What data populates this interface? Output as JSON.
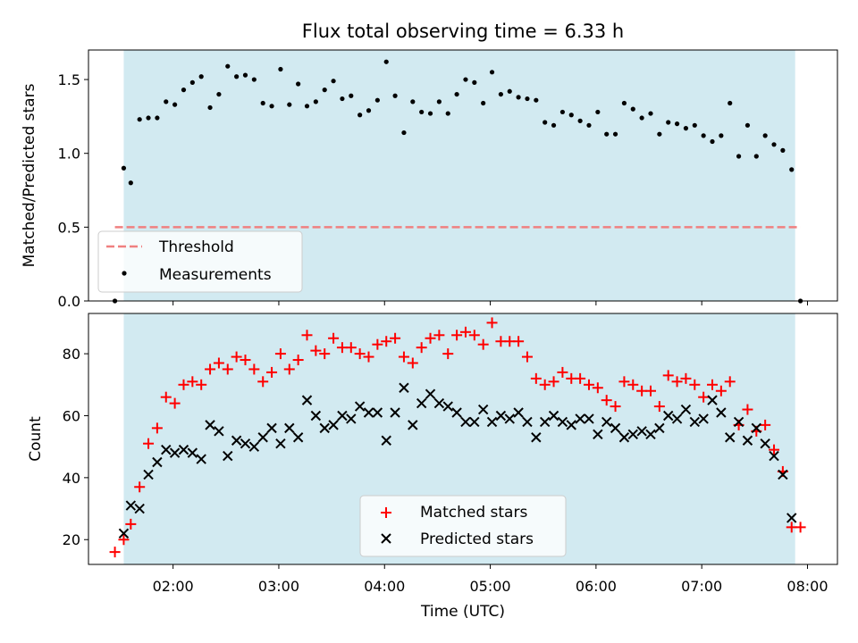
{
  "title": "Flux total observing time = 6.33 h",
  "colors": {
    "background": "#ffffff",
    "span": "#add8e6",
    "threshold": "#f08080",
    "measurements": "#000000",
    "matched": "#ff0000",
    "predicted": "#000000"
  },
  "chart_data": [
    {
      "type": "scatter",
      "ylabel": "Matched/Predicted stars",
      "ylim": [
        0,
        1.7
      ],
      "xlim": [
        "01:12",
        "08:17"
      ],
      "ytick_labels": [
        "0.0",
        "0.5",
        "1.0",
        "1.5"
      ],
      "shaded_span": [
        "01:32",
        "07:53"
      ],
      "threshold": {
        "name": "Threshold",
        "value": 0.5,
        "from": "01:27",
        "to": "07:56"
      },
      "legend": {
        "position": "lower left",
        "entries": [
          "Threshold",
          "Measurements"
        ]
      },
      "series": [
        {
          "name": "Measurements",
          "x": [
            "01:27",
            "01:32",
            "01:36",
            "01:41",
            "01:46",
            "01:51",
            "01:56",
            "02:01",
            "02:06",
            "02:11",
            "02:16",
            "02:21",
            "02:26",
            "02:31",
            "02:36",
            "02:41",
            "02:46",
            "02:51",
            "02:56",
            "03:01",
            "03:06",
            "03:11",
            "03:16",
            "03:21",
            "03:26",
            "03:31",
            "03:36",
            "03:41",
            "03:46",
            "03:51",
            "03:56",
            "04:01",
            "04:06",
            "04:11",
            "04:16",
            "04:21",
            "04:26",
            "04:31",
            "04:36",
            "04:41",
            "04:46",
            "04:51",
            "04:56",
            "05:01",
            "05:06",
            "05:11",
            "05:16",
            "05:21",
            "05:26",
            "05:31",
            "05:36",
            "05:41",
            "05:46",
            "05:51",
            "05:56",
            "06:01",
            "06:06",
            "06:11",
            "06:16",
            "06:21",
            "06:26",
            "06:31",
            "06:36",
            "06:41",
            "06:46",
            "06:51",
            "06:56",
            "07:01",
            "07:06",
            "07:11",
            "07:16",
            "07:21",
            "07:26",
            "07:31",
            "07:36",
            "07:41",
            "07:46",
            "07:51",
            "07:56"
          ],
          "y": [
            0.0,
            0.9,
            0.8,
            1.23,
            1.24,
            1.24,
            1.35,
            1.33,
            1.43,
            1.48,
            1.52,
            1.31,
            1.4,
            1.59,
            1.52,
            1.53,
            1.5,
            1.34,
            1.32,
            1.57,
            1.33,
            1.47,
            1.32,
            1.35,
            1.43,
            1.49,
            1.37,
            1.39,
            1.26,
            1.29,
            1.36,
            1.62,
            1.39,
            1.14,
            1.35,
            1.28,
            1.27,
            1.35,
            1.27,
            1.4,
            1.5,
            1.48,
            1.34,
            1.55,
            1.4,
            1.42,
            1.38,
            1.37,
            1.36,
            1.21,
            1.19,
            1.28,
            1.26,
            1.22,
            1.19,
            1.28,
            1.13,
            1.13,
            1.34,
            1.3,
            1.24,
            1.27,
            1.13,
            1.21,
            1.2,
            1.17,
            1.19,
            1.12,
            1.08,
            1.12,
            1.34,
            0.98,
            1.19,
            0.98,
            1.12,
            1.06,
            1.02,
            0.89,
            0.0
          ]
        }
      ]
    },
    {
      "type": "scatter",
      "ylabel": "Count",
      "xlabel": "Time (UTC)",
      "ylim": [
        12,
        93
      ],
      "xlim": [
        "01:12",
        "08:17"
      ],
      "ytick_labels": [
        "20",
        "40",
        "60",
        "80"
      ],
      "xtick_labels": [
        "02:00",
        "03:00",
        "04:00",
        "05:00",
        "06:00",
        "07:00",
        "08:00"
      ],
      "shaded_span": [
        "01:32",
        "07:53"
      ],
      "legend": {
        "position": "lower center",
        "entries": [
          "Matched stars",
          "Predicted stars"
        ]
      },
      "series": [
        {
          "name": "Matched stars",
          "x": [
            "01:27",
            "01:32",
            "01:36",
            "01:41",
            "01:46",
            "01:51",
            "01:56",
            "02:01",
            "02:06",
            "02:11",
            "02:16",
            "02:21",
            "02:26",
            "02:31",
            "02:36",
            "02:41",
            "02:46",
            "02:51",
            "02:56",
            "03:01",
            "03:06",
            "03:11",
            "03:16",
            "03:21",
            "03:26",
            "03:31",
            "03:36",
            "03:41",
            "03:46",
            "03:51",
            "03:56",
            "04:01",
            "04:06",
            "04:11",
            "04:16",
            "04:21",
            "04:26",
            "04:31",
            "04:36",
            "04:41",
            "04:46",
            "04:51",
            "04:56",
            "05:01",
            "05:06",
            "05:11",
            "05:16",
            "05:21",
            "05:26",
            "05:31",
            "05:36",
            "05:41",
            "05:46",
            "05:51",
            "05:56",
            "06:01",
            "06:06",
            "06:11",
            "06:16",
            "06:21",
            "06:26",
            "06:31",
            "06:36",
            "06:41",
            "06:46",
            "06:51",
            "06:56",
            "07:01",
            "07:06",
            "07:11",
            "07:16",
            "07:21",
            "07:26",
            "07:31",
            "07:36",
            "07:41",
            "07:46",
            "07:51",
            "07:56"
          ],
          "y": [
            16,
            20,
            25,
            37,
            51,
            56,
            66,
            64,
            70,
            71,
            70,
            75,
            77,
            75,
            79,
            78,
            75,
            71,
            74,
            80,
            75,
            78,
            86,
            81,
            80,
            85,
            82,
            82,
            80,
            79,
            83,
            84,
            85,
            79,
            77,
            82,
            85,
            86,
            80,
            86,
            87,
            86,
            83,
            90,
            84,
            84,
            84,
            79,
            72,
            70,
            71,
            74,
            72,
            72,
            70,
            69,
            65,
            63,
            71,
            70,
            68,
            68,
            63,
            73,
            71,
            72,
            70,
            66,
            70,
            68,
            71,
            57,
            62,
            55,
            57,
            49,
            42,
            24,
            24
          ]
        },
        {
          "name": "Predicted stars",
          "x": [
            "01:32",
            "01:36",
            "01:41",
            "01:46",
            "01:51",
            "01:56",
            "02:01",
            "02:06",
            "02:11",
            "02:16",
            "02:21",
            "02:26",
            "02:31",
            "02:36",
            "02:41",
            "02:46",
            "02:51",
            "02:56",
            "03:01",
            "03:06",
            "03:11",
            "03:16",
            "03:21",
            "03:26",
            "03:31",
            "03:36",
            "03:41",
            "03:46",
            "03:51",
            "03:56",
            "04:01",
            "04:06",
            "04:11",
            "04:16",
            "04:21",
            "04:26",
            "04:31",
            "04:36",
            "04:41",
            "04:46",
            "04:51",
            "04:56",
            "05:01",
            "05:06",
            "05:11",
            "05:16",
            "05:21",
            "05:26",
            "05:31",
            "05:36",
            "05:41",
            "05:46",
            "05:51",
            "05:56",
            "06:01",
            "06:06",
            "06:11",
            "06:16",
            "06:21",
            "06:26",
            "06:31",
            "06:36",
            "06:41",
            "06:46",
            "06:51",
            "06:56",
            "07:01",
            "07:06",
            "07:11",
            "07:16",
            "07:21",
            "07:26",
            "07:31",
            "07:36",
            "07:41",
            "07:46",
            "07:51"
          ],
          "y": [
            22,
            31,
            30,
            41,
            45,
            49,
            48,
            49,
            48,
            46,
            57,
            55,
            47,
            52,
            51,
            50,
            53,
            56,
            51,
            56,
            53,
            65,
            60,
            56,
            57,
            60,
            59,
            63,
            61,
            61,
            52,
            61,
            69,
            57,
            64,
            67,
            64,
            63,
            61,
            58,
            58,
            62,
            58,
            60,
            59,
            61,
            58,
            53,
            58,
            60,
            58,
            57,
            59,
            59,
            54,
            58,
            56,
            53,
            54,
            55,
            54,
            56,
            60,
            59,
            62,
            58,
            59,
            65,
            61,
            53,
            58,
            52,
            56,
            51,
            47,
            41,
            27
          ]
        }
      ]
    }
  ]
}
